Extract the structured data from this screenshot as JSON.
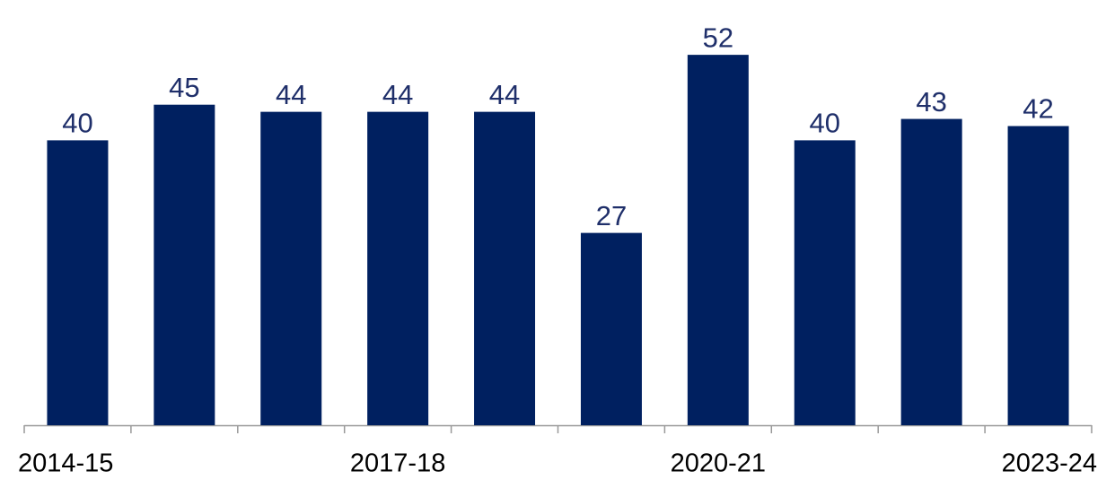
{
  "chart_data": {
    "type": "bar",
    "categories": [
      "2014-15",
      null,
      null,
      "2017-18",
      null,
      null,
      "2020-21",
      null,
      null,
      "2023-24"
    ],
    "values": [
      40,
      45,
      44,
      44,
      44,
      27,
      52,
      40,
      43,
      42
    ],
    "color": "#002060"
  }
}
